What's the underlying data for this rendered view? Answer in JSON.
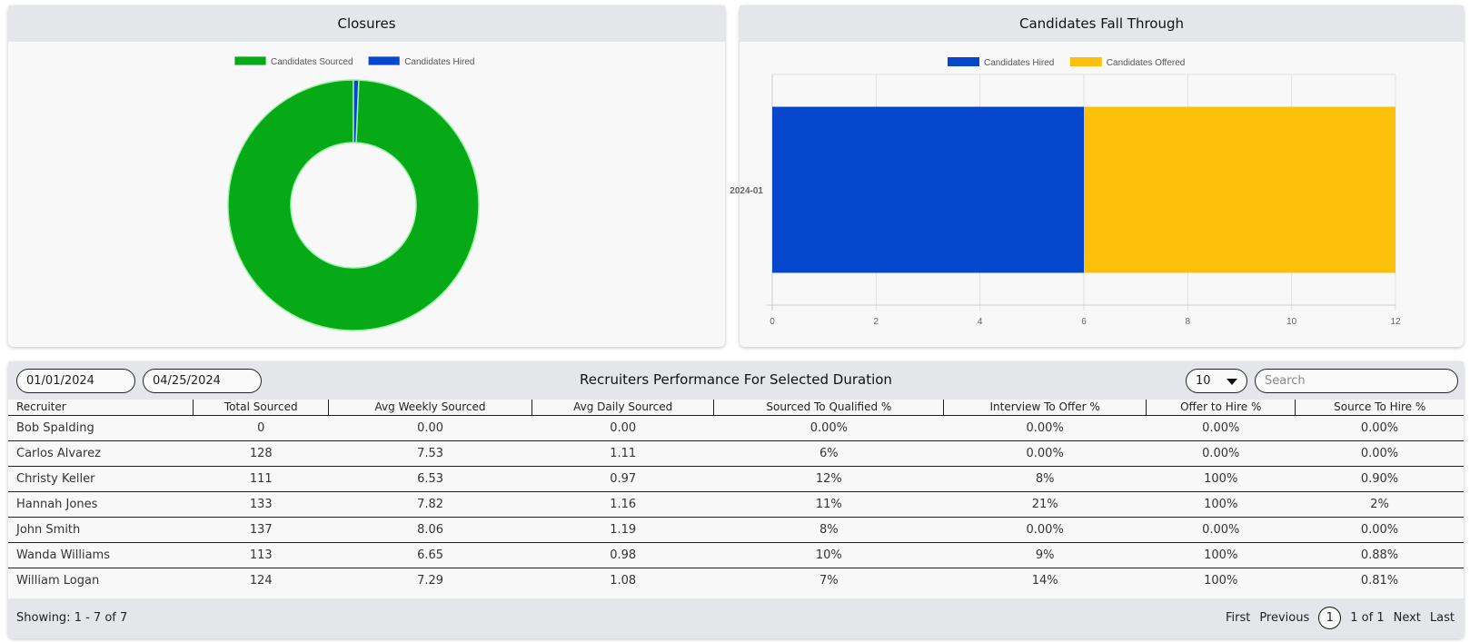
{
  "closures": {
    "title": "Closures",
    "chart_data": {
      "type": "pie",
      "labels": [
        "Candidates Sourced",
        "Candidates Hired"
      ],
      "values": [
        1016,
        7
      ],
      "colors": [
        "#06aa16",
        "#0447cc"
      ]
    }
  },
  "fallthrough": {
    "title": "Candidates Fall Through",
    "chart_data": {
      "type": "bar",
      "orientation": "horizontal",
      "stacked": true,
      "categories": [
        "2024-01"
      ],
      "series": [
        {
          "name": "Candidates Hired",
          "values": [
            6
          ],
          "color": "#0447cc"
        },
        {
          "name": "Candidates Offered",
          "values": [
            6
          ],
          "color": "#fdc00a"
        }
      ],
      "xlim": [
        0,
        12
      ],
      "xticks": [
        "0",
        "2",
        "4",
        "6",
        "8",
        "10",
        "12"
      ]
    }
  },
  "perf": {
    "title": "Recruiters Performance For Selected Duration",
    "start_date": "01/01/2024",
    "end_date": "04/25/2024",
    "page_size": "10",
    "search_placeholder": "Search",
    "columns": [
      "Recruiter",
      "Total Sourced",
      "Avg Weekly Sourced",
      "Avg Daily Sourced",
      "Sourced To Qualified %",
      "Interview To Offer %",
      "Offer to Hire %",
      "Source To Hire %"
    ],
    "rows": [
      [
        "Bob Spalding",
        "0",
        "0.00",
        "0.00",
        "0.00%",
        "0.00%",
        "0.00%",
        "0.00%"
      ],
      [
        "Carlos Alvarez",
        "128",
        "7.53",
        "1.11",
        "6%",
        "0.00%",
        "0.00%",
        "0.00%"
      ],
      [
        "Christy Keller",
        "111",
        "6.53",
        "0.97",
        "12%",
        "8%",
        "100%",
        "0.90%"
      ],
      [
        "Hannah Jones",
        "133",
        "7.82",
        "1.16",
        "11%",
        "21%",
        "100%",
        "2%"
      ],
      [
        "John Smith",
        "137",
        "8.06",
        "1.19",
        "8%",
        "0.00%",
        "0.00%",
        "0.00%"
      ],
      [
        "Wanda Williams",
        "113",
        "6.65",
        "0.98",
        "10%",
        "9%",
        "100%",
        "0.88%"
      ],
      [
        "William Logan",
        "124",
        "7.29",
        "1.08",
        "7%",
        "14%",
        "100%",
        "0.81%"
      ]
    ],
    "showing": "Showing: 1 - 7 of 7",
    "pager": {
      "first": "First",
      "previous": "Previous",
      "current": "1",
      "of_label": "1 of 1",
      "next": "Next",
      "last": "Last"
    }
  }
}
